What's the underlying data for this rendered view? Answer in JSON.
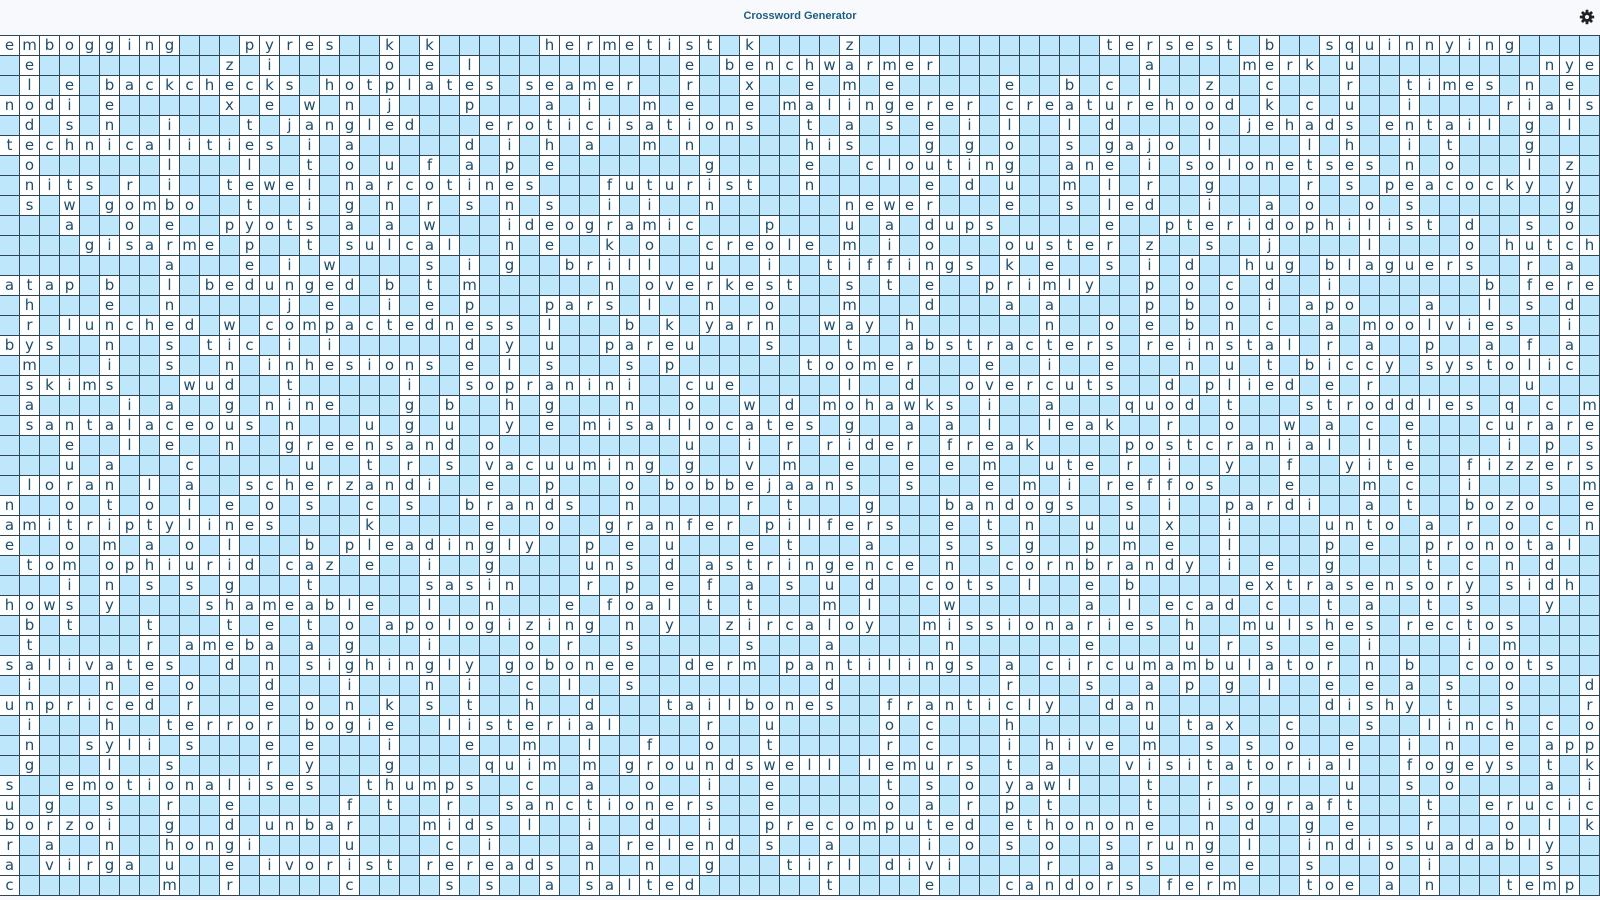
{
  "header": {
    "title": "Crossword Generator",
    "settings_icon": "gear-icon"
  },
  "colors": {
    "blank_cell": "#bfe7fb",
    "letter_cell": "#ffffff",
    "grid_line": "#2e4656",
    "text": "#1d4e6c",
    "title": "#1d5f80"
  },
  "grid": {
    "blank_marker": ".",
    "rows": [
      "embogging...pyres..k.k.....hermetist.k....z............tersest.b..squinnying....",
      ".e.........z.i.....o.e.l..........e.benchwarmer..........a....merk.u.........nye",
      ".l.e.backchecks.hotplates.seamer..r..x..e.m.e.....e..b.c.l..z..c...r..times.n.e.",
      "nodi.e.....x.e.w.n.j...p...a.i..m.e..e.malingerer.creaturehood.k.c.u..i....rials",
      ".d.s.n..i...t.jangled...eroticisations..t.a.s.e.i.l..l.d....o.jehads.entail.g.l.",
      "technicalities.i.a.....d.i.h.a..m.n.....his...g.g.o..s.gajo.l....l.h..i.t...g...",
      ".o......l...l..t.o.u.f.a.p.e.......g....e..clouting..ane.i.solonetses.n.o...l.z.",
      ".nits.r.i..tewel.narcotines...futurist..n.....e.d.u..m.l.r..g....r.s.peacocky.y.",
      ".s.w.gombo..t..i.g.n.r.s.n.s..i.i..n......newer...e..s.led..i..a.o..o.s.......g.",
      "...a..o.e..pyots.a.a.w...ideogramic...p...u.a.dups.....e..pteridophilist.d..s.o.",
      "....gisarme.p..t.sulcal..n.e..k.o..creole.m.i.o...ouster.z..s..j....l....o.hutch",
      "........a...e.i.w....s.i.g..brill..u..i..tiffings.k.e..s.i.d..hug.blaguers..r.a.",
      "atap.b..l.bedunged.b.t.m......n.overkest..s.t.e..primly..p.o.c.d..i.......b.fere",
      ".h...e..n.....j.e..i.e.p...pars.l..n..o...m...d...a.a....p.b.o.i.apo...a..l.s.d.",
      ".r.lunched.w.compactedness.l...b.k.yarn..way.h......n..o.e.b.n.c..a.moolvies..i.",
      "bys..n..s.tic.i.i......d.y.u..pareu...s...t..abstracters.reinstal.r.a..p..a.f.a.",
      ".m...i..s..n.inhesions.e.l.s...s.p......toomer...e..i..e...n.u.t.biccy.systolic.",
      ".skims...wud..t.....i..sopranini..cue.....l..d..overcuts..d.plied.e.r.......u...",
      ".a....i.a..g.nine...g.b..h.g...n..o..w.d.mohawks.i..a...quod.t...stroddles.q.c.m",
      ".santalaceous.n...u.g.u..y.e.misallocates.g..a.a.l..leak..r..o..w.a.c.e...curare",
      "...e..l.e..n..greensand.o.........u..i.r.rider.freak....postcranial.l.t....i.p.s",
      "...u.a...c.....u..t.r.s.vacuuming.g..v.m..e..e.e.m..ute.r.i..y..f..yite..fizzers",
      ".loran.l.a..scherzandi..e..p...o.bobbejaans..s...e.m.i.reffos...e...m.c..i...s.m",
      "n..o.t.o.l.e.o.s..c.s..brands..n.....r.t...g...bandogs..s.i..pardi..a.t..bozo..e",
      "amitriptylines....k.....e..o..granfer.pilfers..e.t.n..u.u.x..i....unto.a.r.o.c.n",
      "e..o.m.a.o.l...b.pleadingly..p.e.u...e.t...a...s.s.g..p.m.e..l....p.e..pronotal.",
      ".tom.ophiurid.caz.e..i..g....uns.d.astringence.n..cornbrandy.i.e..g....t.c.n.d..",
      "...i.n.s.s.g...t.....sasin...r.p.e.f.a.s.u.d..cots.l..e.b.....extrasensory.sidh.",
      "hows.y....shameable..l..n...e.foal.t.t...m.l...w......a.l.ecad.c..t.a..t.s...y..",
      ".b.t...t...t.e.t.o.apologizing.n.y..zircaloy..missionaries.h..mulshes.rectos....",
      ".t.....r.ameba.a.g...i....o.r..s.....s...a.....n......e....u.r.s..e.i....i.m....",
      "salivates..d.n.sighingly.gobonee..derm.pantilings.a.circumambulator.n.b..coots..",
      ".i...n.e.o...d...i...n.i..c.l..s.........d........r...s..a.p.g.l..e.e.a.s..o...d",
      "unpriced.r...e.o.n.k.s.t..h..d...tailbones..franticly..dan........dishy.t..s...r",
      ".i...h..terror.bogie..listerial....r..u.....o.c...h......u.tax..c...s..linch.c.o",
      ".n..syli.s...e.e...i...e..m..l..f..o..t.....r.c...i.hive.m..s.s.o..e..i.n..e.app",
      ".g...l..s....r.y...g....quim.m.groundswell.lemurs.t.a...visitatorial..fogeys.t.k",
      "s..emotionalises..thumps..c..a..o..i..e.....t.s.o.yawl...t..r.r....u..s.o....a.i",
      "u.g..s..r..e.....f.t..r..sanctioners..e.....o.a.r.p.t....t..isograft...t..erucic",
      "borzoi..g..d.unbar...mids.l..i..d..i..precomputed.ethonone..n.d..g.e...r...o.l.k",
      "r.a..n..hongi....u....c.i....a.relend.s..a....i.o.s.o..s.rung.l..indissuadably..",
      "a.virga.u..e.ivorist.rereads.n..n..g...tirl.divi....r..a.s..e.e..s...o.i.....s..",
      "c.......m..r.....c....s.s..a.salted......t....e...candors.ferm...toe.a.n...temp."
    ]
  }
}
